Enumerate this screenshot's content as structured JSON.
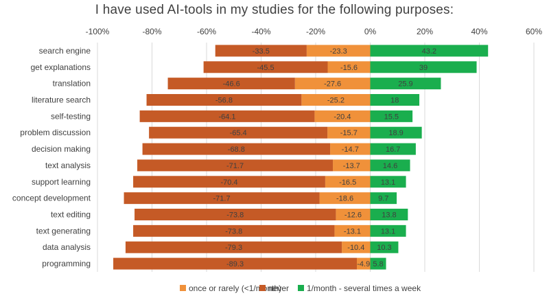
{
  "chart_data": {
    "type": "bar",
    "orientation": "horizontal",
    "stacked": "diverging",
    "title": "I have used AI-tools in my studies for the following purposes:",
    "xlabel": "",
    "ylabel": "",
    "xlim": [
      -100,
      60
    ],
    "xticks": [
      -100,
      -80,
      -60,
      -40,
      -20,
      0,
      20,
      40,
      60
    ],
    "xtick_labels": [
      "-100%",
      "-80%",
      "-60%",
      "-40%",
      "-20%",
      "0%",
      "20%",
      "40%",
      "60%"
    ],
    "grid": true,
    "legend_position": "bottom",
    "categories": [
      "search engine",
      "get explanations",
      "translation",
      "literature search",
      "self-testing",
      "problem discussion",
      "decision making",
      "text analysis",
      "support learning",
      "concept development",
      "text editing",
      "text generating",
      "data analysis",
      "programming"
    ],
    "series": [
      {
        "name": "once or rarely (<1/month)",
        "color": "#f0913a",
        "values": [
          -23.3,
          -15.6,
          -27.6,
          -25.2,
          -20.4,
          -15.7,
          -14.7,
          -13.7,
          -16.5,
          -18.6,
          -12.6,
          -13.1,
          -10.4,
          -4.9
        ]
      },
      {
        "name": "never",
        "color": "#c55a26",
        "values": [
          -33.5,
          -45.5,
          -46.6,
          -56.8,
          -64.1,
          -65.4,
          -68.8,
          -71.7,
          -70.4,
          -71.7,
          -73.8,
          -73.8,
          -79.3,
          -89.3
        ]
      },
      {
        "name": "1/month - several times a week",
        "color": "#1aae4e",
        "values": [
          43.2,
          39,
          25.9,
          18,
          15.5,
          18.9,
          16.7,
          14.6,
          13.1,
          9.7,
          13.8,
          13.1,
          10.3,
          5.8
        ]
      }
    ]
  }
}
